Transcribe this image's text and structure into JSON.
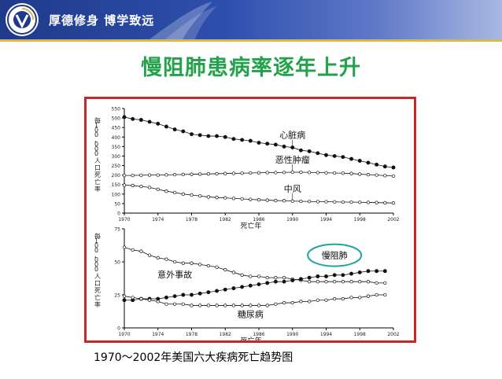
{
  "header": {
    "motto": "厚德修身  博学致远",
    "colors": {
      "banner": "#1f3a8a",
      "accent": "#d7b84a"
    }
  },
  "slide": {
    "title": "慢阻肺患病率逐年上升",
    "caption": "1970～2002年美国六大疾病死亡趋势图",
    "title_color": "#22a24a",
    "frame_color": "#c62828"
  },
  "chart_data": [
    {
      "type": "line",
      "ylabel": "每100,000人口死亡率",
      "xlabel": "死亡年",
      "xlim": [
        1970,
        2002
      ],
      "ylim": [
        0,
        550
      ],
      "xticks": [
        "1970",
        "1974",
        "1978",
        "1982",
        "1986",
        "1990",
        "1994",
        "1998",
        "2002"
      ],
      "yticks": [
        "0",
        "50",
        "100",
        "150",
        "200",
        "250",
        "300",
        "350",
        "400",
        "450",
        "500",
        "550"
      ],
      "x": [
        1970,
        1971,
        1972,
        1973,
        1974,
        1975,
        1976,
        1977,
        1978,
        1979,
        1980,
        1981,
        1982,
        1983,
        1984,
        1985,
        1986,
        1987,
        1988,
        1989,
        1990,
        1991,
        1992,
        1993,
        1994,
        1995,
        1996,
        1997,
        1998,
        1999,
        2000,
        2001,
        2002
      ],
      "series": [
        {
          "name": "心脏病",
          "marker": "filled",
          "values": [
            505,
            495,
            490,
            480,
            470,
            455,
            440,
            430,
            415,
            410,
            405,
            405,
            400,
            390,
            385,
            380,
            370,
            365,
            360,
            350,
            345,
            330,
            325,
            315,
            305,
            300,
            295,
            285,
            275,
            265,
            255,
            245,
            240
          ]
        },
        {
          "name": "恶性肿瘤",
          "marker": "hollow",
          "values": [
            198,
            198,
            199,
            200,
            200,
            201,
            202,
            203,
            204,
            205,
            206,
            207,
            208,
            209,
            210,
            211,
            212,
            213,
            213,
            214,
            215,
            215,
            214,
            213,
            212,
            211,
            210,
            208,
            205,
            202,
            200,
            197,
            195
          ]
        },
        {
          "name": "中风",
          "marker": "hollow",
          "values": [
            147,
            145,
            140,
            135,
            125,
            115,
            108,
            100,
            95,
            90,
            85,
            82,
            80,
            77,
            75,
            72,
            70,
            68,
            66,
            65,
            63,
            62,
            61,
            60,
            60,
            59,
            58,
            58,
            57,
            56,
            55,
            54,
            53
          ]
        }
      ]
    },
    {
      "type": "line",
      "ylabel": "每100,000人口死亡率",
      "xlabel": "死亡年",
      "xlim": [
        1970,
        2002
      ],
      "ylim": [
        0,
        75
      ],
      "xticks": [
        "1970",
        "1974",
        "1978",
        "1982",
        "1986",
        "1990",
        "1994",
        "1998",
        "2002"
      ],
      "yticks": [
        "0",
        "25",
        "50",
        "75"
      ],
      "x": [
        1970,
        1971,
        1972,
        1973,
        1974,
        1975,
        1976,
        1977,
        1978,
        1979,
        1980,
        1981,
        1982,
        1983,
        1984,
        1985,
        1986,
        1987,
        1988,
        1989,
        1990,
        1991,
        1992,
        1993,
        1994,
        1995,
        1996,
        1997,
        1998,
        1999,
        2000,
        2001
      ],
      "series": [
        {
          "name": "意外事故",
          "marker": "hollow",
          "values": [
            61,
            59,
            58,
            55,
            53,
            52,
            50,
            49,
            49,
            48,
            47,
            46,
            44,
            42,
            40,
            39,
            39,
            38,
            38,
            38,
            37,
            36,
            35,
            35,
            35,
            35,
            35,
            35,
            35,
            35,
            34,
            34
          ]
        },
        {
          "name": "慢阻肺",
          "marker": "filled",
          "values": [
            21,
            21,
            22,
            22,
            22,
            23,
            24,
            25,
            25,
            26,
            27,
            28,
            29,
            30,
            31,
            32,
            33,
            34,
            35,
            35,
            36,
            37,
            38,
            39,
            39,
            40,
            40,
            41,
            42,
            43,
            43,
            43
          ]
        },
        {
          "name": "糖尿病",
          "marker": "hollow",
          "values": [
            24,
            23,
            22,
            21,
            20,
            18,
            18,
            18,
            17,
            17,
            17,
            17,
            17,
            17,
            17,
            17,
            17,
            17,
            18,
            19,
            19,
            20,
            20,
            21,
            21,
            22,
            22,
            23,
            23,
            24,
            25,
            25
          ]
        }
      ],
      "highlight": "慢阻肺"
    }
  ]
}
